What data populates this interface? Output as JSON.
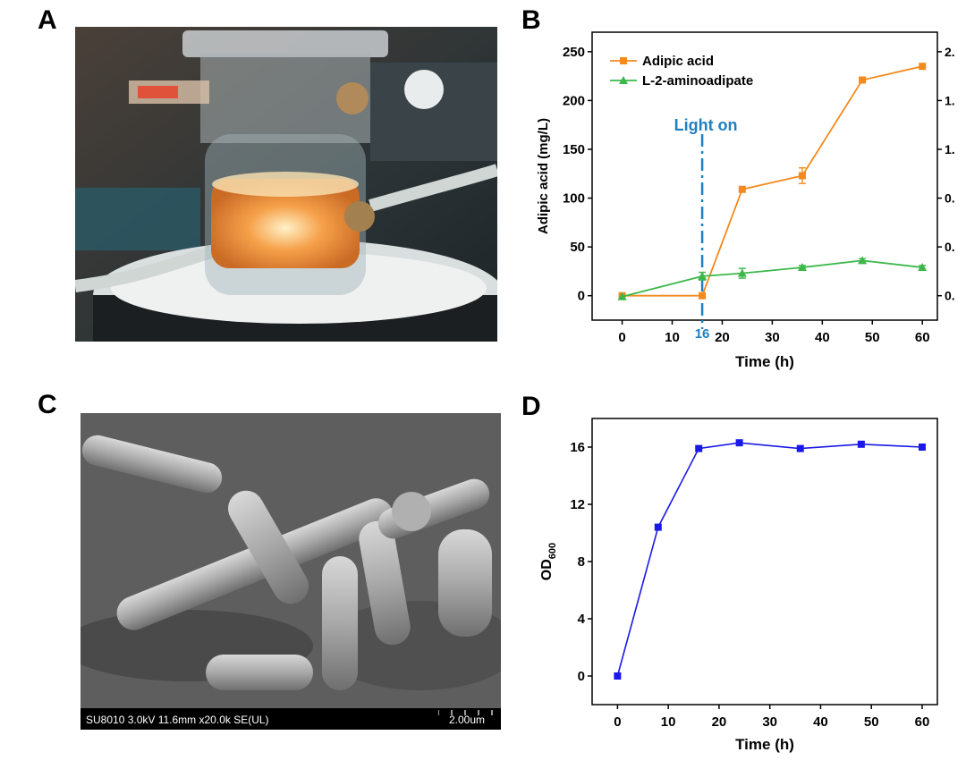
{
  "panels": {
    "a": "A",
    "b": "B",
    "c": "C",
    "d": "D"
  },
  "sem": {
    "info": "SU8010 3.0kV 11.6mm x20.0k SE(UL)",
    "scale": "2.00um"
  },
  "colors": {
    "adipic": "#f28a1e",
    "aminoadipate": "#3cb84a",
    "od": "#1a1ae6",
    "light_on": "#1f7fc1"
  },
  "chart_data": [
    {
      "type": "line",
      "panel": "B",
      "xlabel": "Time (h)",
      "ylabel": "Adipic acid (mg/L)",
      "xlim": [
        -6,
        63
      ],
      "ylim": [
        -25,
        270
      ],
      "xticks": [
        0,
        10,
        20,
        30,
        40,
        50,
        60
      ],
      "yticks": [
        0,
        50,
        100,
        150,
        200,
        250
      ],
      "right_axis_ticks": [
        "2.",
        "1.",
        "1.",
        "0.",
        "0.",
        "0."
      ],
      "legend_position": "top-left",
      "annotation": {
        "text": "Light on",
        "x": 16,
        "x_label": "16"
      },
      "series": [
        {
          "name": "Adipic acid",
          "marker": "square",
          "x": [
            0,
            16,
            24,
            36,
            48,
            60
          ],
          "values": [
            0,
            0,
            109,
            123,
            221,
            235
          ],
          "errors": [
            0,
            0,
            0,
            8,
            0,
            0
          ]
        },
        {
          "name": "L-2-aminoadipate",
          "marker": "triangle",
          "x": [
            0,
            16,
            24,
            36,
            48,
            60
          ],
          "values": [
            -1,
            20,
            23,
            29,
            36,
            29
          ],
          "errors": [
            0,
            4,
            5,
            2,
            2,
            2
          ]
        }
      ]
    },
    {
      "type": "line",
      "panel": "D",
      "xlabel": "Time (h)",
      "ylabel": "OD",
      "ylabel_sub": "600",
      "xlim": [
        -5,
        63
      ],
      "ylim": [
        -2,
        18
      ],
      "xticks": [
        0,
        10,
        20,
        30,
        40,
        50,
        60
      ],
      "yticks": [
        0,
        4,
        8,
        12,
        16
      ],
      "series": [
        {
          "marker": "square",
          "x": [
            0,
            8,
            16,
            24,
            36,
            48,
            60
          ],
          "values": [
            0,
            10.4,
            15.9,
            16.3,
            15.9,
            16.2,
            16.0
          ]
        }
      ]
    }
  ]
}
